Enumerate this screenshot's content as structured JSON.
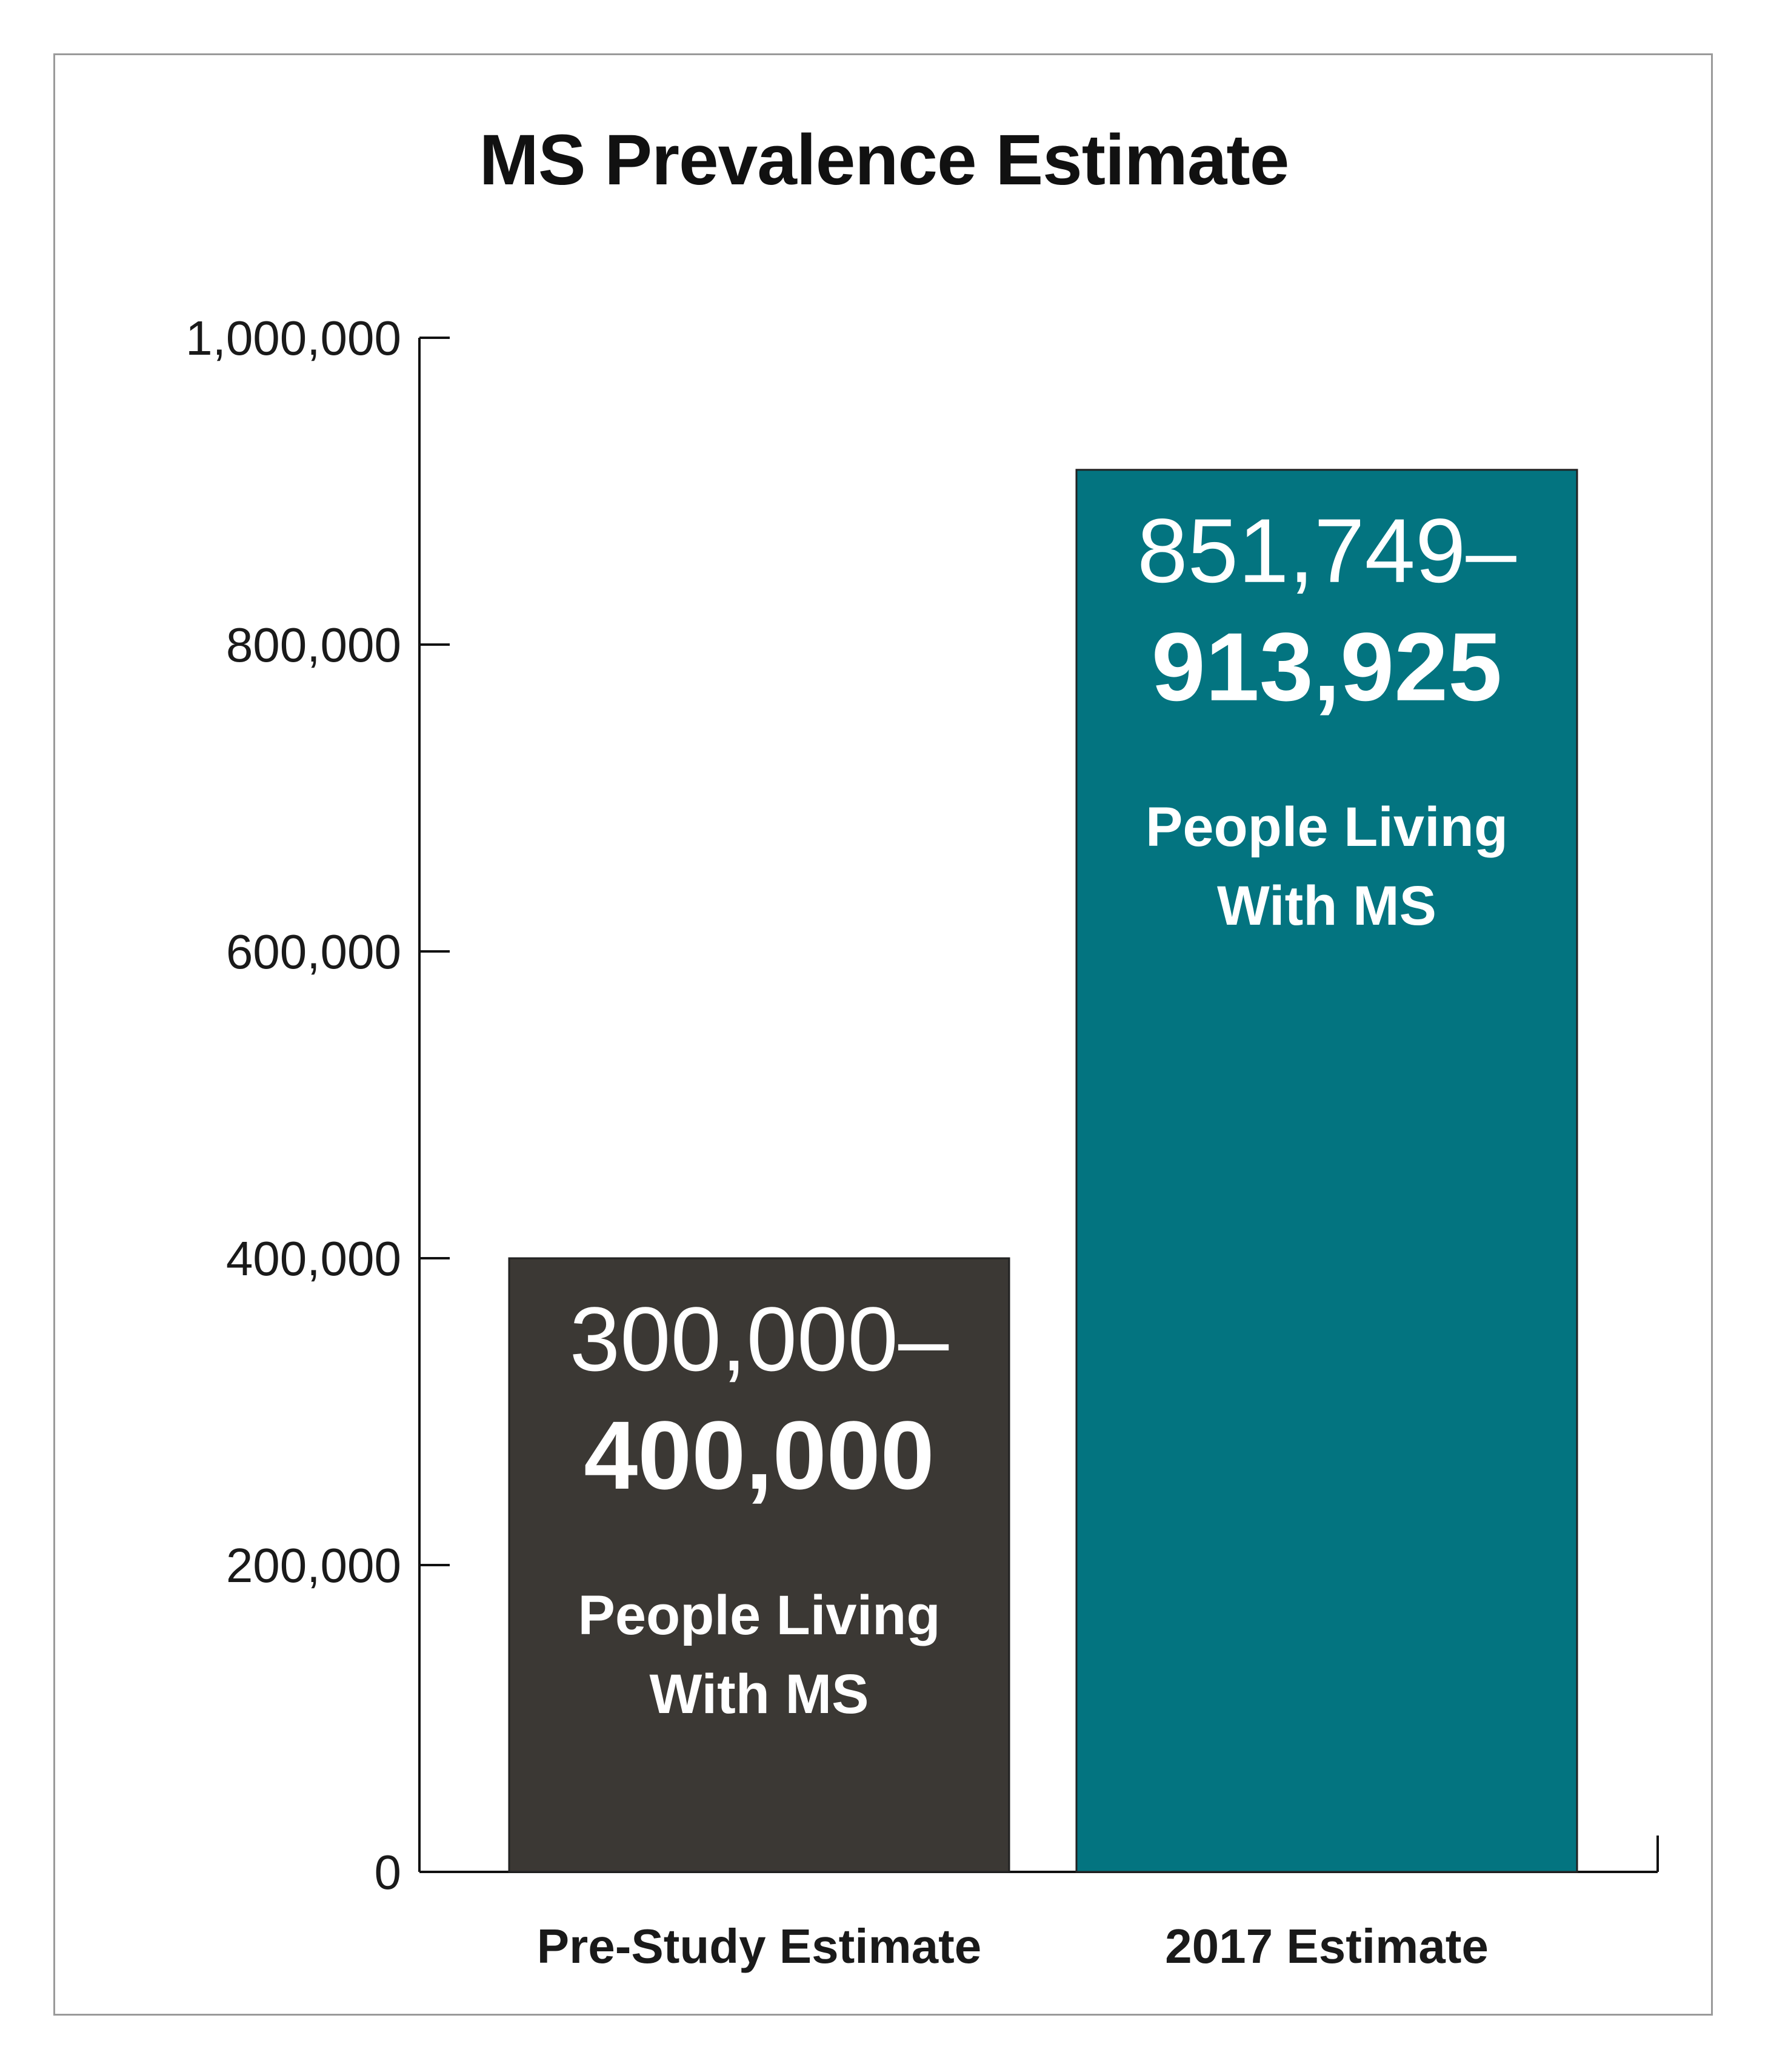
{
  "chart_data": {
    "type": "bar",
    "title": "MS Prevalence Estimate",
    "xlabel": "",
    "ylabel": "",
    "ylim": [
      0,
      1000000
    ],
    "yticks": [
      0,
      200000,
      400000,
      600000,
      800000,
      1000000
    ],
    "ytick_labels": [
      "0",
      "200,000",
      "400,000",
      "600,000",
      "800,000",
      "1,000,000"
    ],
    "grid": false,
    "categories": [
      "Pre-Study Estimate",
      "2017 Estimate"
    ],
    "values": [
      400000,
      913925
    ],
    "bars": [
      {
        "category": "Pre-Study Estimate",
        "low_label": "300,000–",
        "high_label": "400,000",
        "caption_line1": "People Living",
        "caption_line2": "With MS"
      },
      {
        "category": "2017 Estimate",
        "low_label": "851,749–",
        "high_label": "913,925",
        "caption_line1": "People Living",
        "caption_line2": "With MS"
      }
    ],
    "colors": [
      "#3b3834",
      "#037480"
    ]
  }
}
